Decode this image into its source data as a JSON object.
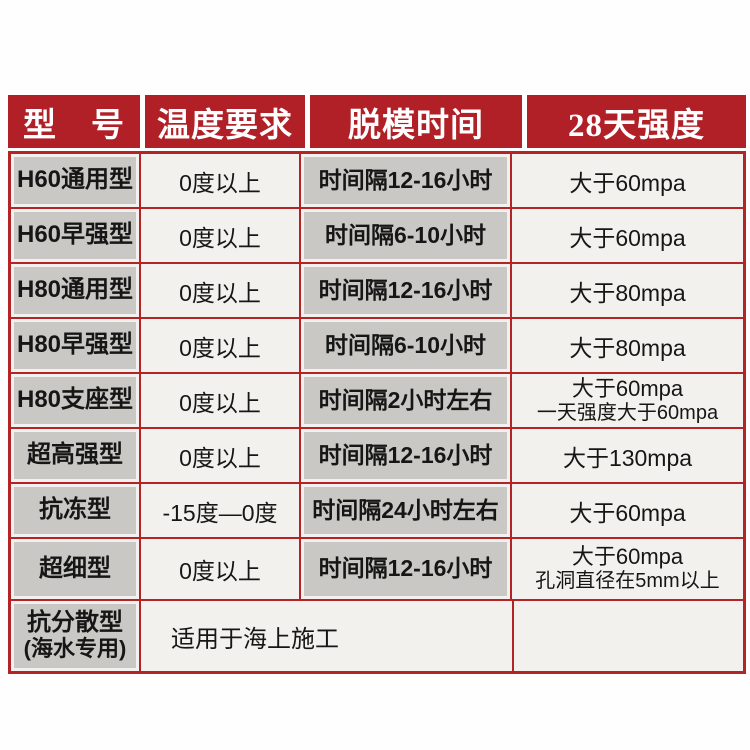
{
  "colors": {
    "header_red": "#b02026",
    "grid_red": "#b32427",
    "gray_cell": "#c9c8c5",
    "offwhite_cell": "#f2f1ed",
    "header_text": "#ffffff",
    "body_text": "#161616"
  },
  "table": {
    "headers": [
      "型　号",
      "温度要求",
      "脱模时间",
      "28天强度"
    ],
    "rows": [
      {
        "model": "H60通用型",
        "temp": "0度以上",
        "demold": "时间隔12-16小时",
        "strength": "大于60mpa"
      },
      {
        "model": "H60早强型",
        "temp": "0度以上",
        "demold": "时间隔6-10小时",
        "strength": "大于60mpa"
      },
      {
        "model": "H80通用型",
        "temp": "0度以上",
        "demold": "时间隔12-16小时",
        "strength": "大于80mpa"
      },
      {
        "model": "H80早强型",
        "temp": "0度以上",
        "demold": "时间隔6-10小时",
        "strength": "大于80mpa"
      },
      {
        "model": "H80支座型",
        "temp": "0度以上",
        "demold": "时间隔2小时左右",
        "strength": "大于60mpa",
        "strength2": "一天强度大于60mpa"
      },
      {
        "model": "超高强型",
        "temp": "0度以上",
        "demold": "时间隔12-16小时",
        "strength": "大于130mpa"
      },
      {
        "model": "抗冻型",
        "temp": "-15度—0度",
        "demold": "时间隔24小时左右",
        "strength": "大于60mpa"
      },
      {
        "model": "超细型",
        "temp": "0度以上",
        "demold": "时间隔12-16小时",
        "strength": "大于60mpa",
        "strength2": "孔洞直径在5mm以上"
      }
    ],
    "last_row": {
      "model_line1": "抗分散型",
      "model_line2": "(海水专用)",
      "note": "适用于海上施工",
      "strength": ""
    }
  }
}
